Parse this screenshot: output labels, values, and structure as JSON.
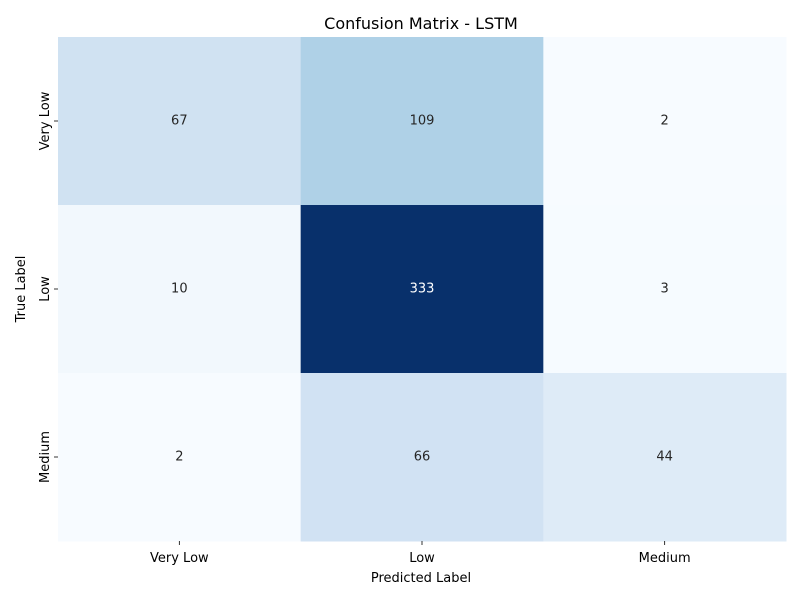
{
  "chart_data": {
    "type": "heatmap",
    "title": "Confusion Matrix - LSTM",
    "xlabel": "Predicted Label",
    "ylabel": "True Label",
    "x_categories": [
      "Very Low",
      "Low",
      "Medium"
    ],
    "y_categories": [
      "Very Low",
      "Low",
      "Medium"
    ],
    "matrix": [
      [
        67,
        109,
        2
      ],
      [
        10,
        333,
        3
      ],
      [
        2,
        66,
        44
      ]
    ],
    "colormap": "Blues",
    "value_range": [
      2,
      333
    ],
    "colorbar": false,
    "grid": false
  }
}
